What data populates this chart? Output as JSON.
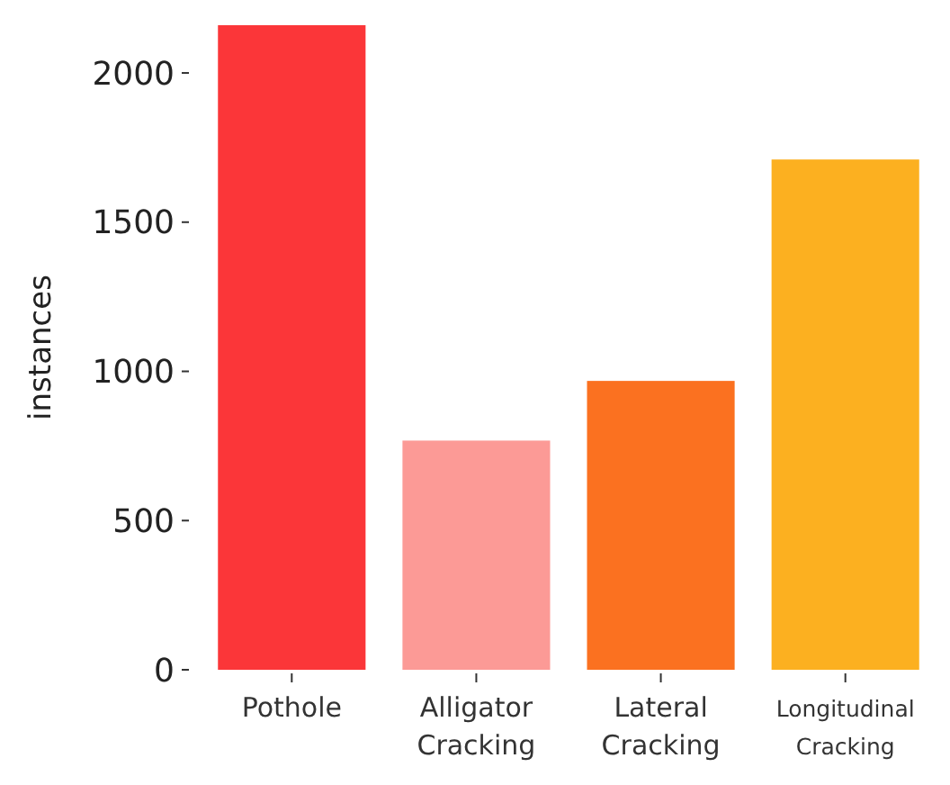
{
  "chart_data": {
    "type": "bar",
    "ylabel": "instances",
    "categories": [
      "Pothole",
      "Alligator Cracking",
      "Lateral Cracking",
      "Longitudinal Cracking"
    ],
    "values": [
      2160,
      768,
      968,
      1710
    ],
    "colors": [
      "#fb3639",
      "#fc9a96",
      "#fb7120",
      "#fcb020"
    ],
    "ylim": [
      0,
      2160
    ],
    "yticks": [
      0,
      500,
      1000,
      1500,
      2000
    ],
    "grid": false
  }
}
